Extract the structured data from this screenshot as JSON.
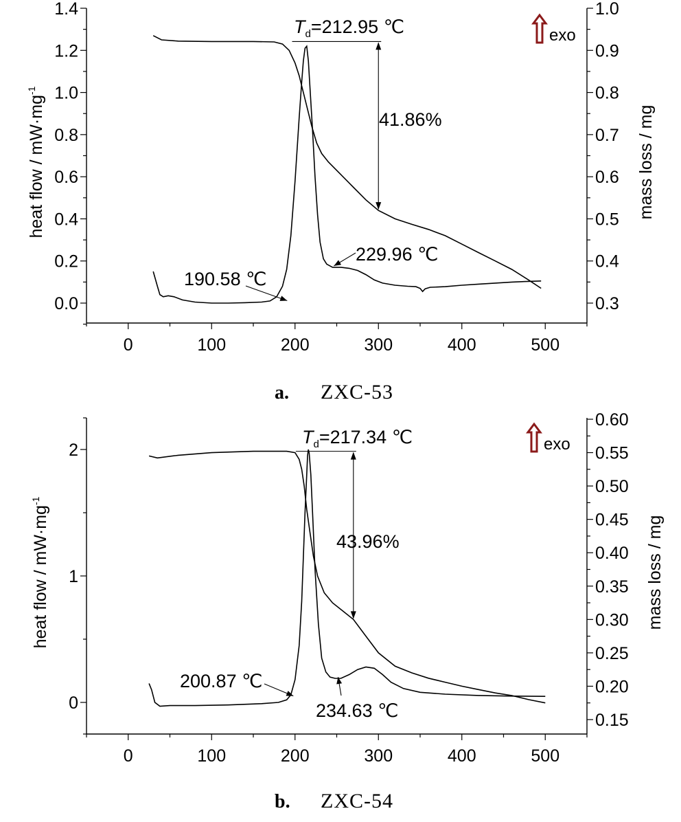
{
  "chart_data": [
    {
      "type": "line",
      "panel_letter": "a.",
      "panel_name": "ZXC-53",
      "xlabel": "",
      "ylabel_left": "heat flow / mW·mg",
      "ylabel_left_sup": "-1",
      "ylabel_right": "mass loss / mg",
      "xlim": [
        -50,
        550
      ],
      "ylim_left": [
        -0.1,
        1.4
      ],
      "ylim_right": [
        0.25,
        1.0
      ],
      "x_ticks": [
        0,
        100,
        200,
        300,
        400,
        500
      ],
      "x_tick_labels": [
        "0",
        "100",
        "200",
        "300",
        "400",
        "500"
      ],
      "y_left_ticks": [
        0.0,
        0.2,
        0.4,
        0.6,
        0.8,
        1.0,
        1.2,
        1.4
      ],
      "y_left_tick_labels": [
        "0.0",
        "0.2",
        "0.4",
        "0.6",
        "0.8",
        "1.0",
        "1.2",
        "1.4"
      ],
      "y_right_ticks": [
        0.3,
        0.4,
        0.5,
        0.6,
        0.7,
        0.8,
        0.9,
        1.0
      ],
      "y_right_tick_labels": [
        "0.3",
        "0.4",
        "0.5",
        "0.6",
        "0.7",
        "0.8",
        "0.9",
        "1.0"
      ],
      "series": [
        {
          "axis": "left",
          "points": [
            [
              30,
              0.15
            ],
            [
              35,
              0.08
            ],
            [
              38,
              0.04
            ],
            [
              42,
              0.03
            ],
            [
              48,
              0.035
            ],
            [
              55,
              0.03
            ],
            [
              65,
              0.015
            ],
            [
              80,
              0.005
            ],
            [
              100,
              0.0
            ],
            [
              120,
              0.0
            ],
            [
              140,
              0.002
            ],
            [
              160,
              0.005
            ],
            [
              170,
              0.01
            ],
            [
              178,
              0.03
            ],
            [
              185,
              0.08
            ],
            [
              190,
              0.16
            ],
            [
              195,
              0.32
            ],
            [
              200,
              0.58
            ],
            [
              205,
              0.88
            ],
            [
              208,
              1.05
            ],
            [
              210,
              1.15
            ],
            [
              212,
              1.21
            ],
            [
              214,
              1.22
            ],
            [
              216,
              1.15
            ],
            [
              218,
              1.02
            ],
            [
              221,
              0.82
            ],
            [
              224,
              0.6
            ],
            [
              227,
              0.42
            ],
            [
              230,
              0.29
            ],
            [
              234,
              0.21
            ],
            [
              238,
              0.185
            ],
            [
              245,
              0.17
            ],
            [
              255,
              0.17
            ],
            [
              265,
              0.165
            ],
            [
              275,
              0.155
            ],
            [
              285,
              0.135
            ],
            [
              295,
              0.11
            ],
            [
              305,
              0.095
            ],
            [
              320,
              0.085
            ],
            [
              335,
              0.08
            ],
            [
              345,
              0.078
            ],
            [
              350,
              0.07
            ],
            [
              353,
              0.055
            ],
            [
              356,
              0.068
            ],
            [
              362,
              0.075
            ],
            [
              380,
              0.078
            ],
            [
              400,
              0.085
            ],
            [
              420,
              0.09
            ],
            [
              440,
              0.095
            ],
            [
              460,
              0.1
            ],
            [
              480,
              0.103
            ],
            [
              495,
              0.105
            ]
          ]
        },
        {
          "axis": "right",
          "points": [
            [
              30,
              0.935
            ],
            [
              40,
              0.925
            ],
            [
              60,
              0.922
            ],
            [
              100,
              0.921
            ],
            [
              150,
              0.921
            ],
            [
              175,
              0.92
            ],
            [
              185,
              0.915
            ],
            [
              193,
              0.9
            ],
            [
              200,
              0.87
            ],
            [
              205,
              0.84
            ],
            [
              210,
              0.8
            ],
            [
              215,
              0.76
            ],
            [
              220,
              0.72
            ],
            [
              226,
              0.68
            ],
            [
              232,
              0.655
            ],
            [
              240,
              0.635
            ],
            [
              255,
              0.605
            ],
            [
              270,
              0.575
            ],
            [
              285,
              0.545
            ],
            [
              300,
              0.52
            ],
            [
              320,
              0.5
            ],
            [
              340,
              0.487
            ],
            [
              360,
              0.475
            ],
            [
              380,
              0.46
            ],
            [
              400,
              0.44
            ],
            [
              420,
              0.42
            ],
            [
              440,
              0.4
            ],
            [
              460,
              0.38
            ],
            [
              480,
              0.355
            ],
            [
              495,
              0.335
            ]
          ]
        }
      ],
      "annotations": {
        "td_prefix": "T",
        "td_sub": "d",
        "td_text": "=212.95 ℃",
        "mass_loss": "41.86%",
        "onset": "190.58 ℃",
        "post_peak": "229.96 ℃",
        "td_value": 212.95,
        "mass_top_value": 0.921,
        "mass_bottom_value": 0.52,
        "mass_bar_x": 300,
        "onset_pointer": [
          190.58,
          0.005
        ],
        "post_peak_pointer": [
          245,
          0.17
        ]
      },
      "exo": {
        "label": "exo",
        "arrow_color": "#8b1a1a"
      }
    },
    {
      "type": "line",
      "panel_letter": "b.",
      "panel_name": "ZXC-54",
      "xlabel": "",
      "ylabel_left": "heat flow / mW·mg",
      "ylabel_left_sup": "-1",
      "ylabel_right": "mass loss / mg",
      "xlim": [
        -50,
        550
      ],
      "ylim_left": [
        -0.25,
        2.25
      ],
      "ylim_right": [
        0.13,
        0.6
      ],
      "x_ticks": [
        0,
        100,
        200,
        300,
        400,
        500
      ],
      "x_tick_labels": [
        "0",
        "100",
        "200",
        "300",
        "400",
        "500"
      ],
      "y_left_ticks": [
        0,
        1,
        2
      ],
      "y_left_tick_labels": [
        "0",
        "1",
        "2"
      ],
      "y_right_ticks": [
        0.15,
        0.2,
        0.25,
        0.3,
        0.35,
        0.4,
        0.45,
        0.5,
        0.55,
        0.6
      ],
      "y_right_tick_labels": [
        "0.15",
        "0.20",
        "0.25",
        "0.30",
        "0.35",
        "0.40",
        "0.45",
        "0.50",
        "0.55",
        "0.60"
      ],
      "series": [
        {
          "axis": "left",
          "points": [
            [
              25,
              0.15
            ],
            [
              28,
              0.1
            ],
            [
              32,
              0.0
            ],
            [
              38,
              -0.03
            ],
            [
              50,
              -0.025
            ],
            [
              80,
              -0.025
            ],
            [
              120,
              -0.02
            ],
            [
              160,
              -0.01
            ],
            [
              180,
              0.0
            ],
            [
              190,
              0.02
            ],
            [
              195,
              0.06
            ],
            [
              200,
              0.18
            ],
            [
              205,
              0.45
            ],
            [
              208,
              0.8
            ],
            [
              210,
              1.15
            ],
            [
              212,
              1.5
            ],
            [
              214,
              1.8
            ],
            [
              215,
              1.95
            ],
            [
              216,
              2.0
            ],
            [
              217,
              1.97
            ],
            [
              219,
              1.8
            ],
            [
              221,
              1.5
            ],
            [
              224,
              1.05
            ],
            [
              228,
              0.62
            ],
            [
              232,
              0.35
            ],
            [
              237,
              0.24
            ],
            [
              242,
              0.2
            ],
            [
              248,
              0.19
            ],
            [
              255,
              0.19
            ],
            [
              265,
              0.22
            ],
            [
              275,
              0.26
            ],
            [
              285,
              0.28
            ],
            [
              295,
              0.27
            ],
            [
              305,
              0.22
            ],
            [
              315,
              0.16
            ],
            [
              330,
              0.11
            ],
            [
              350,
              0.08
            ],
            [
              380,
              0.065
            ],
            [
              420,
              0.055
            ],
            [
              460,
              0.05
            ],
            [
              500,
              0.048
            ]
          ]
        },
        {
          "axis": "right",
          "points": [
            [
              25,
              0.545
            ],
            [
              35,
              0.542
            ],
            [
              60,
              0.546
            ],
            [
              100,
              0.55
            ],
            [
              150,
              0.552
            ],
            [
              190,
              0.552
            ],
            [
              200,
              0.55
            ],
            [
              205,
              0.54
            ],
            [
              208,
              0.525
            ],
            [
              211,
              0.5
            ],
            [
              214,
              0.465
            ],
            [
              218,
              0.43
            ],
            [
              222,
              0.395
            ],
            [
              227,
              0.365
            ],
            [
              235,
              0.34
            ],
            [
              245,
              0.325
            ],
            [
              260,
              0.31
            ],
            [
              270,
              0.3
            ],
            [
              285,
              0.275
            ],
            [
              300,
              0.25
            ],
            [
              320,
              0.23
            ],
            [
              340,
              0.22
            ],
            [
              360,
              0.212
            ],
            [
              380,
              0.206
            ],
            [
              400,
              0.2
            ],
            [
              420,
              0.195
            ],
            [
              440,
              0.19
            ],
            [
              460,
              0.186
            ],
            [
              480,
              0.18
            ],
            [
              500,
              0.175
            ]
          ]
        }
      ],
      "annotations": {
        "td_prefix": "T",
        "td_sub": "d",
        "td_text": "=217.34 ℃",
        "mass_loss": "43.96%",
        "onset": "200.87 ℃",
        "post_peak": "234.63 ℃",
        "td_value": 217.34,
        "mass_top_value": 0.552,
        "mass_bottom_value": 0.3,
        "mass_bar_x": 270,
        "onset_pointer": [
          198,
          0.04
        ],
        "post_peak_pointer": [
          250,
          0.19
        ]
      },
      "exo": {
        "label": "exo",
        "arrow_color": "#8b1a1a"
      }
    }
  ]
}
